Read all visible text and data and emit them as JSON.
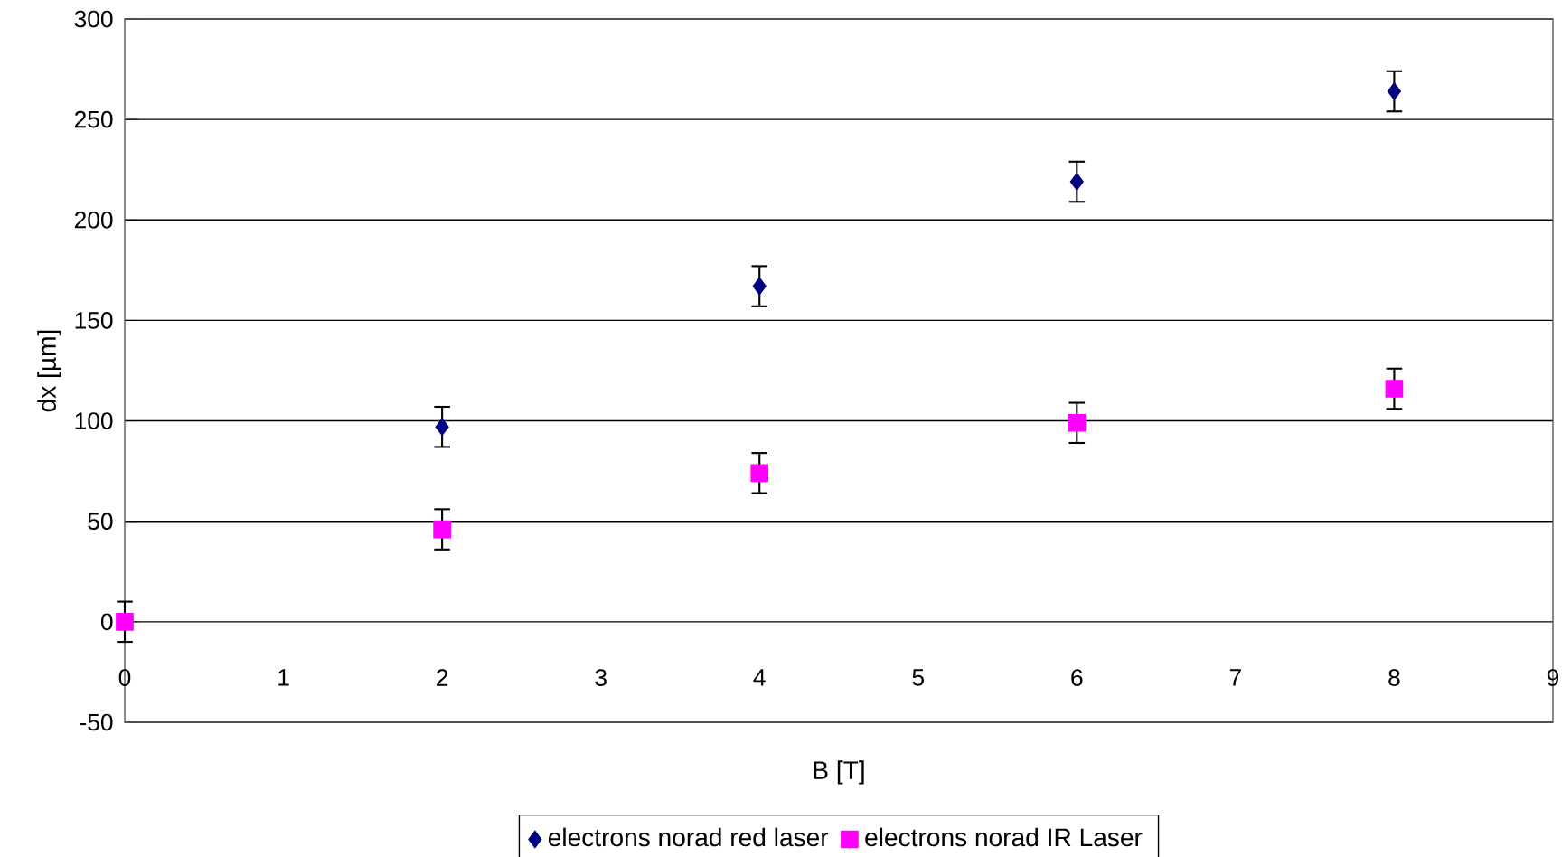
{
  "chart_data": {
    "type": "scatter",
    "xlabel": "B [T]",
    "ylabel": "dx [µm]",
    "xlim": [
      0,
      9
    ],
    "ylim": [
      -50,
      300
    ],
    "xticks": [
      0,
      1,
      2,
      3,
      4,
      5,
      6,
      7,
      8,
      9
    ],
    "yticks": [
      -50,
      0,
      50,
      100,
      150,
      200,
      250,
      300
    ],
    "grid": "y",
    "legend": "bottom",
    "x": [
      0,
      2,
      4,
      6,
      8
    ],
    "series": [
      {
        "name": "electrons norad red laser",
        "color": "#000080",
        "marker": "diamond",
        "values": [
          null,
          97,
          167,
          219,
          264
        ],
        "errors": [
          null,
          10,
          10,
          10,
          10
        ]
      },
      {
        "name": "electrons norad IR Laser",
        "color": "#ff00ff",
        "marker": "square",
        "values": [
          0,
          46,
          74,
          99,
          116
        ],
        "errors": [
          10,
          10,
          10,
          10,
          10
        ]
      }
    ]
  }
}
